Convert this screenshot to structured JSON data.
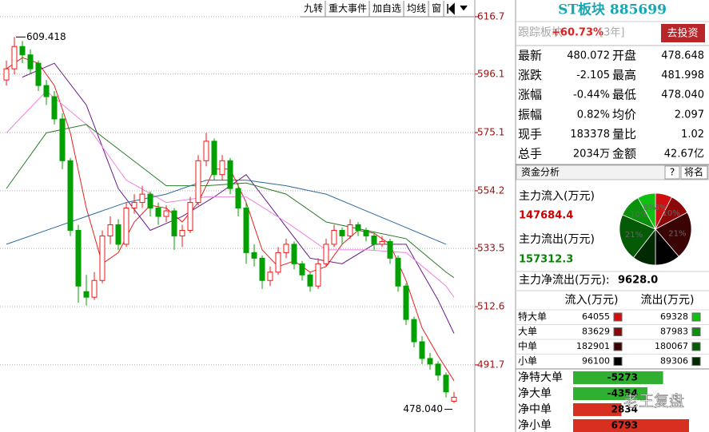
{
  "toolbar": [
    "九转",
    "重大事件",
    "加自选",
    "均线",
    "窗"
  ],
  "chart": {
    "type": "candlestick",
    "ylim": [
      467.6,
      622.7
    ],
    "yticks": [
      616.7,
      596.1,
      575.1,
      554.2,
      533.5,
      512.6,
      491.7
    ],
    "grid": true,
    "up_color": "#f01818",
    "down_color": "#00a000",
    "high_label": "609.418",
    "low_label": "478.040",
    "candles": [
      [
        594,
        601,
        592,
        598
      ],
      [
        598,
        609.418,
        596,
        606
      ],
      [
        606,
        608,
        600,
        603
      ],
      [
        603,
        605,
        596,
        598
      ],
      [
        600,
        601,
        590,
        592
      ],
      [
        592,
        594,
        585,
        588
      ],
      [
        588,
        590,
        578,
        580
      ],
      [
        580,
        582,
        562,
        565
      ],
      [
        565,
        566,
        538,
        540
      ],
      [
        540,
        542,
        514,
        520
      ],
      [
        518,
        524,
        513,
        516
      ],
      [
        516,
        525,
        515,
        522
      ],
      [
        522,
        540,
        521,
        538
      ],
      [
        538,
        545,
        535,
        542
      ],
      [
        542,
        544,
        533,
        535
      ],
      [
        535,
        550,
        534,
        548
      ],
      [
        548,
        553,
        546,
        550
      ],
      [
        550,
        556,
        548,
        553
      ],
      [
        553,
        554,
        545,
        548
      ],
      [
        548,
        550,
        542,
        545
      ],
      [
        545,
        549,
        543,
        547
      ],
      [
        547,
        548,
        533,
        538
      ],
      [
        538,
        542,
        534,
        540
      ],
      [
        540,
        552,
        539,
        550
      ],
      [
        550,
        567,
        549,
        565
      ],
      [
        565,
        575,
        563,
        572
      ],
      [
        572,
        573,
        558,
        560
      ],
      [
        560,
        567,
        558,
        565
      ],
      [
        565,
        566,
        553,
        555
      ],
      [
        555,
        557,
        545,
        548
      ],
      [
        548,
        550,
        528,
        532
      ],
      [
        532,
        535,
        527,
        530
      ],
      [
        530,
        531,
        519,
        522
      ],
      [
        522,
        527,
        520,
        525
      ],
      [
        525,
        534,
        524,
        532
      ],
      [
        532,
        537,
        530,
        535
      ],
      [
        535,
        536,
        526,
        528
      ],
      [
        528,
        529,
        522,
        524
      ],
      [
        524,
        525,
        518,
        520
      ],
      [
        520,
        530,
        519,
        528
      ],
      [
        528,
        537,
        527,
        535
      ],
      [
        535,
        542,
        534,
        540
      ],
      [
        540,
        541,
        535,
        538
      ],
      [
        538,
        544,
        537,
        542
      ],
      [
        542,
        543,
        538,
        540
      ],
      [
        540,
        541,
        536,
        538
      ],
      [
        538,
        539,
        533,
        535
      ],
      [
        535,
        538,
        534,
        536
      ],
      [
        536,
        537,
        528,
        530
      ],
      [
        530,
        531,
        518,
        520
      ],
      [
        520,
        521,
        506,
        508
      ],
      [
        508,
        509,
        498,
        500
      ],
      [
        500,
        502,
        492,
        494
      ],
      [
        494,
        496,
        490,
        492
      ],
      [
        492,
        493,
        486,
        488
      ],
      [
        488,
        489,
        480,
        482
      ],
      [
        478.648,
        481.998,
        478.04,
        480.072
      ]
    ],
    "ma": [
      {
        "color": "#e8211c",
        "x": [
          0,
          2,
          4,
          6,
          8,
          10,
          12,
          14,
          16,
          18,
          20,
          22,
          24,
          26,
          28,
          30,
          32,
          34,
          36,
          38,
          40,
          42,
          44,
          46,
          48,
          50,
          52,
          54,
          56
        ],
        "values": [
          598,
          602,
          600,
          592,
          575,
          548,
          528,
          532,
          543,
          549,
          548,
          543,
          550,
          562,
          562,
          550,
          533,
          527,
          529,
          525,
          527,
          535,
          540,
          539,
          535,
          522,
          505,
          495,
          486
        ]
      },
      {
        "color": "#6a1a8a",
        "x": [
          2,
          6,
          10,
          14,
          18,
          22,
          26,
          30,
          34,
          38,
          42,
          46,
          50,
          54,
          56
        ],
        "values": [
          595,
          600,
          585,
          555,
          540,
          545,
          552,
          560,
          545,
          530,
          528,
          535,
          535,
          515,
          503
        ]
      },
      {
        "color": "#f080e0",
        "x": [
          0,
          5,
          10,
          15,
          20,
          25,
          30,
          35,
          40,
          45,
          50,
          55,
          56
        ],
        "values": [
          575,
          590,
          578,
          558,
          550,
          552,
          552,
          543,
          533,
          533,
          532,
          520,
          516
        ]
      },
      {
        "color": "#2a7a2a",
        "x": [
          0,
          5,
          10,
          15,
          20,
          25,
          30,
          35,
          40,
          45,
          50,
          55,
          56
        ],
        "values": [
          555,
          575,
          578,
          567,
          556,
          556,
          557,
          553,
          543,
          540,
          537,
          525,
          523
        ]
      },
      {
        "color": "#2a6aa0",
        "x": [
          0,
          5,
          10,
          15,
          20,
          25,
          30,
          35,
          40,
          45,
          50,
          55
        ],
        "values": [
          535,
          540,
          545,
          550,
          553,
          558,
          558,
          556,
          553,
          547,
          541,
          535
        ]
      }
    ]
  },
  "panel": {
    "title": "ST板块 885699",
    "track_label": "跟踪板块",
    "track_change": "+60.73%",
    "track_period": "[3年]",
    "button": "去投资",
    "quote": [
      [
        "最新",
        "480.072",
        "开盘",
        "478.648"
      ],
      [
        "涨跌",
        "-2.105",
        "最高",
        "481.998"
      ],
      [
        "涨幅",
        "-0.44%",
        "最低",
        "478.040"
      ],
      [
        "振幅",
        "0.82%",
        "均价",
        "2.097"
      ],
      [
        "现手",
        "183378",
        "量比",
        "1.02"
      ],
      [
        "总手",
        "2034万",
        "金额",
        "42.67亿"
      ]
    ]
  },
  "funds": {
    "tab": "资金分析",
    "help": "?",
    "rank": "将名",
    "main_in_label": "主力流入(万元)",
    "main_in": 147684.4,
    "main_out_label": "主力流出(万元)",
    "main_out": 157312.3,
    "main_net_label": "主力净流出(万元):",
    "main_net": "9628.0",
    "pie_labels": [
      "8%",
      "10%",
      "21%",
      null,
      null,
      "21%",
      "10%",
      "8%"
    ],
    "headers": [
      "流入(万元)",
      "流出(万元)"
    ],
    "rows": [
      {
        "name": "特大单",
        "in": 64055,
        "out": 69328,
        "in_color": "#d01010",
        "out_color": "#10c010"
      },
      {
        "name": "大单",
        "in": 83629,
        "out": 87983,
        "in_color": "#8a0808",
        "out_color": "#0a900a"
      },
      {
        "name": "中单",
        "in": 182901,
        "out": 180067,
        "in_color": "#3a0404",
        "out_color": "#055a05"
      },
      {
        "name": "小单",
        "in": 96100,
        "out": 89306,
        "in_color": "#000000",
        "out_color": "#022a02"
      }
    ],
    "net": [
      {
        "name": "净特大单",
        "value": -5273
      },
      {
        "name": "净大单",
        "value": -4354
      },
      {
        "name": "净中单",
        "value": 2834
      },
      {
        "name": "净小单",
        "value": 6793
      }
    ],
    "pos_color": "#d83020",
    "neg_color": "#30b030"
  },
  "watermark": "老王复盘"
}
